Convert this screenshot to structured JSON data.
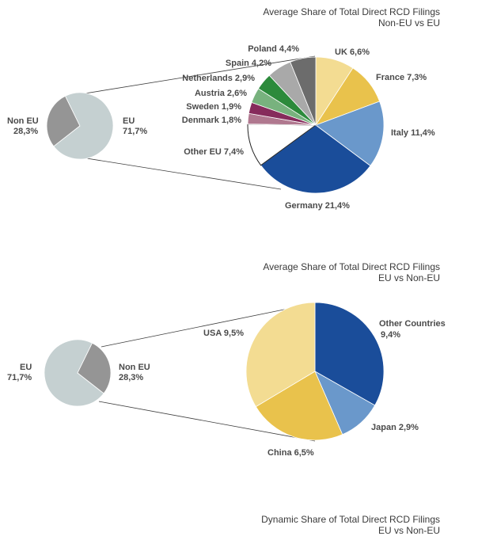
{
  "chart_data": [
    {
      "type": "pie",
      "title": "Average Share of Total Direct RCD Filings",
      "subtitle": "Non-EU vs EU",
      "overview": {
        "slices": [
          {
            "label": "Non EU",
            "value": "28,3%",
            "pct": 28.3,
            "color": "#959595"
          },
          {
            "label": "EU",
            "value": "71,7%",
            "pct": 71.7,
            "color": "#c5d0d1"
          }
        ]
      },
      "detail": {
        "slices": [
          {
            "label": "UK 6,6%",
            "pct": 6.6,
            "color": "#f3dc92"
          },
          {
            "label": "France 7,3%",
            "pct": 7.3,
            "color": "#e9c24c"
          },
          {
            "label": "Italy 11,4%",
            "pct": 11.4,
            "color": "#6a98cb"
          },
          {
            "label": "Germany 21,4%",
            "pct": 21.4,
            "color": "#1a4d9a"
          },
          {
            "label": "Other EU 7,4%",
            "pct": 7.4,
            "color": "#ffffff"
          },
          {
            "label": "Denmark 1,8%",
            "pct": 1.8,
            "color": "#b0788f"
          },
          {
            "label": "Sweden 1,9%",
            "pct": 1.9,
            "color": "#862b5b"
          },
          {
            "label": "Austria 2,6%",
            "pct": 2.6,
            "color": "#78b27e"
          },
          {
            "label": "Netherlands 2,9%",
            "pct": 2.9,
            "color": "#2c8a3b"
          },
          {
            "label": "Spain 4,2%",
            "pct": 4.2,
            "color": "#a9a9a9"
          },
          {
            "label": "Poland 4,4%",
            "pct": 4.4,
            "color": "#6c6c6c"
          }
        ]
      }
    },
    {
      "type": "pie",
      "title": "Average Share of Total Direct RCD Filings",
      "subtitle": "EU vs Non-EU",
      "overview": {
        "slices": [
          {
            "label": "EU",
            "value": "71,7%",
            "pct": 71.7,
            "color": "#c5d0d1"
          },
          {
            "label": "Non EU",
            "value": "28,3%",
            "pct": 28.3,
            "color": "#959595"
          }
        ]
      },
      "detail": {
        "slices": [
          {
            "label_line1": "Other Countries",
            "label_line2": "9,4%",
            "pct": 9.4,
            "color": "#1a4d9a"
          },
          {
            "label": "Japan 2,9%",
            "pct": 2.9,
            "color": "#6a98cb"
          },
          {
            "label": "China 6,5%",
            "pct": 6.5,
            "color": "#e9c24c"
          },
          {
            "label": "USA 9,5%",
            "pct": 9.5,
            "color": "#f3dc92"
          }
        ]
      }
    },
    {
      "type": "pie",
      "title": "Dynamic Share of Total Direct RCD Filings",
      "subtitle": "EU vs Non-EU"
    }
  ]
}
